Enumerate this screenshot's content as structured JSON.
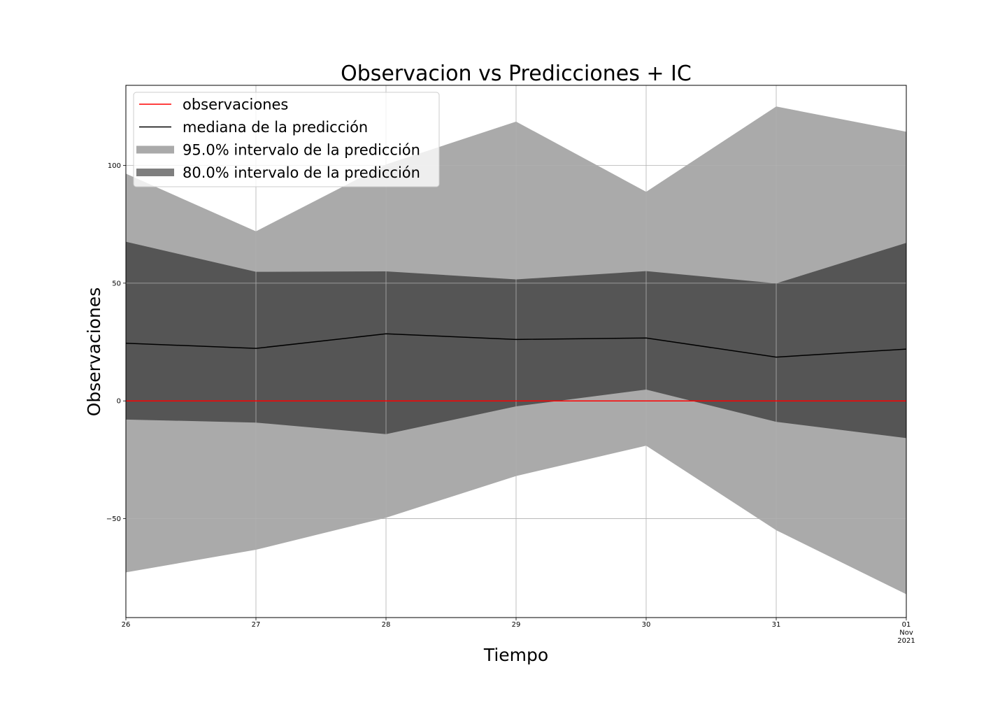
{
  "chart_data": {
    "type": "area",
    "title": "Observacion vs Predicciones + IC",
    "xlabel": "Tiempo",
    "ylabel": "Observaciones",
    "x": [
      "2021-10-26",
      "2021-10-27",
      "2021-10-28",
      "2021-10-29",
      "2021-10-30",
      "2021-10-31",
      "2021-11-01"
    ],
    "x_tick_labels": [
      {
        "lines": [
          "26"
        ]
      },
      {
        "lines": [
          "27"
        ]
      },
      {
        "lines": [
          "28"
        ]
      },
      {
        "lines": [
          "29"
        ]
      },
      {
        "lines": [
          "30"
        ]
      },
      {
        "lines": [
          "31"
        ]
      },
      {
        "lines": [
          "01",
          "Nov",
          "2021"
        ]
      }
    ],
    "y_ticks": [
      -50,
      0,
      50,
      100
    ],
    "y_tick_labels": [
      "−50",
      "0",
      "50",
      "100"
    ],
    "ylim": [
      -92,
      134
    ],
    "grid": true,
    "legend_position": "top-left",
    "series": [
      {
        "name": "observaciones",
        "kind": "line",
        "color": "#ff0000",
        "values": [
          0,
          0,
          0,
          0,
          0,
          0,
          0
        ]
      },
      {
        "name": "mediana de la predicción",
        "kind": "line",
        "color": "#000000",
        "values": [
          24.5,
          22.3,
          28.5,
          26.1,
          26.7,
          18.6,
          22.0
        ]
      },
      {
        "name": "95.0% intervalo de la predicción",
        "kind": "band",
        "color": "#aaaaaa",
        "lower": [
          -72.8,
          -63.2,
          -49.6,
          -31.9,
          -19.0,
          -54.9,
          -82.1
        ],
        "upper": [
          96.5,
          72.0,
          100.4,
          118.6,
          88.8,
          125.0,
          114.3
        ]
      },
      {
        "name": "80.0% intervalo de la predicción",
        "kind": "band",
        "color": "#555555",
        "legend_color": "#7f7f7f",
        "lower": [
          -7.9,
          -9.2,
          -14.1,
          -2.3,
          4.8,
          -8.9,
          -15.8
        ],
        "upper": [
          67.6,
          54.8,
          55.0,
          51.6,
          55.1,
          49.9,
          67.1
        ]
      }
    ]
  }
}
